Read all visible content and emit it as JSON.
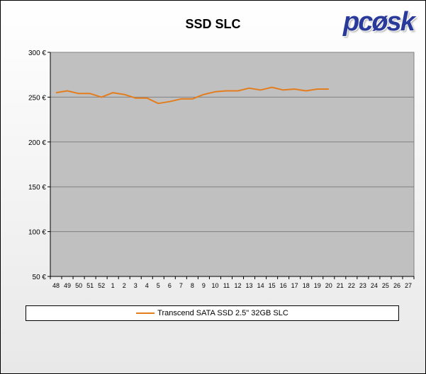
{
  "logo": "pcøsk",
  "chart_data": {
    "type": "line",
    "title": "SSD SLC",
    "xlabel": "",
    "ylabel": "",
    "categories": [
      "48",
      "49",
      "50",
      "51",
      "52",
      "1",
      "2",
      "3",
      "4",
      "5",
      "6",
      "7",
      "8",
      "9",
      "10",
      "11",
      "12",
      "13",
      "14",
      "15",
      "16",
      "17",
      "18",
      "19",
      "20",
      "21",
      "22",
      "23",
      "24",
      "25",
      "26",
      "27"
    ],
    "ylim": [
      50,
      300
    ],
    "yticks": [
      50,
      100,
      150,
      200,
      250,
      300
    ],
    "ytick_suffix": " €",
    "grid": true,
    "legend_position": "bottom",
    "series": [
      {
        "name": "Transcend SATA SSD 2.5\" 32GB SLC",
        "color": "#e37d1d",
        "values": [
          255,
          257,
          254,
          254,
          250,
          255,
          253,
          249,
          249,
          243,
          245,
          248,
          248,
          253,
          256,
          257,
          257,
          260,
          258,
          261,
          258,
          259,
          257,
          259,
          259,
          null,
          null,
          null,
          null,
          null,
          null,
          null
        ]
      }
    ]
  }
}
